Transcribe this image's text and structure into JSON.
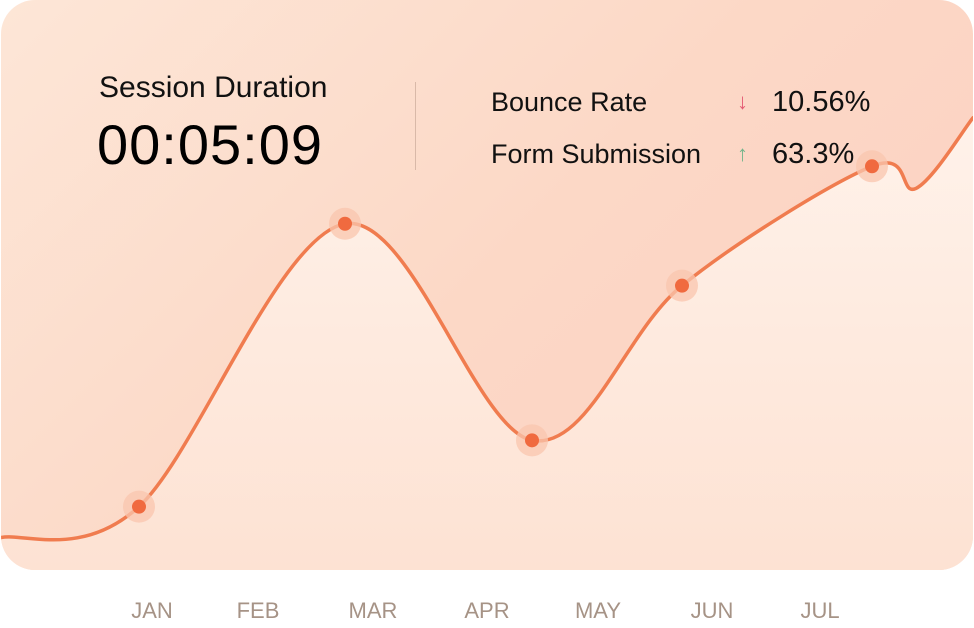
{
  "stats": {
    "session_title": "Session Duration",
    "session_value": "00:05:09",
    "metrics": [
      {
        "label": "Bounce Rate",
        "arrow": "↓",
        "arrow_color": "#e45c74",
        "value": "10.56%"
      },
      {
        "label": "Form Submission",
        "arrow": "↑",
        "arrow_color": "#73b48b",
        "value": "63.3%"
      }
    ]
  },
  "chart_data": {
    "type": "line",
    "x": [
      "JAN",
      "FEB",
      "MAR",
      "APR",
      "MAY",
      "JUN",
      "JUL"
    ],
    "series": [
      {
        "values": [
          {
            "x": "JAN",
            "y": 8
          },
          {
            "x": "MAR",
            "y": 72
          },
          {
            "x": "APR",
            "y": 23
          },
          {
            "x": "JUN",
            "y": 58
          },
          {
            "x": "JUL",
            "y": 85
          }
        ]
      }
    ],
    "ylim": [
      0,
      100
    ],
    "grid": false,
    "colors": {
      "line": "#f07c4f",
      "point": "#f06a3f",
      "point_halo": "#f9c6ae",
      "area_top": "#fff2ea",
      "area_bottom": "#fde2d3",
      "tick": "#a69386"
    }
  }
}
